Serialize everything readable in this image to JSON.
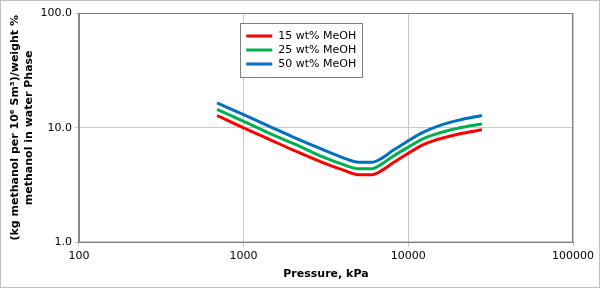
{
  "chart_data": {
    "type": "line",
    "xlabel": "Pressure, kPa",
    "ylabel": [
      "(kg methanol per 10⁶ Sm³)/weight %",
      "methanol in water Phase"
    ],
    "log": true,
    "grid": true,
    "legend": "top",
    "xlim": [
      100,
      100000
    ],
    "xticks": [
      100,
      1000,
      10000,
      100000
    ],
    "ylim": [
      1,
      100
    ],
    "yticks": [
      {
        "value": 1,
        "label": "1.0"
      },
      {
        "value": 10,
        "label": "10.0"
      },
      {
        "value": 100,
        "label": "100.0"
      }
    ],
    "x": [
      690,
      1000,
      1500,
      2000,
      3000,
      4000,
      5000,
      6000,
      7000,
      8000,
      10000,
      12000,
      15000,
      20000,
      28000
    ],
    "series": [
      {
        "name": "15 wt% MeOH",
        "color": "#ff0000",
        "values": [
          12.8,
          10.0,
          7.7,
          6.4,
          5.0,
          4.3,
          3.9,
          3.9,
          4.3,
          4.9,
          6.0,
          7.0,
          7.9,
          8.8,
          9.6
        ]
      },
      {
        "name": "25 wt% MeOH",
        "color": "#00b050",
        "values": [
          14.5,
          11.4,
          8.7,
          7.3,
          5.6,
          4.8,
          4.4,
          4.4,
          4.9,
          5.6,
          6.8,
          7.9,
          8.9,
          9.9,
          10.8
        ]
      },
      {
        "name": "50 wt% MeOH",
        "color": "#0070c0",
        "values": [
          16.5,
          13.0,
          10.0,
          8.3,
          6.5,
          5.5,
          5.0,
          5.0,
          5.5,
          6.3,
          7.7,
          9.0,
          10.3,
          11.6,
          12.8
        ]
      }
    ]
  }
}
